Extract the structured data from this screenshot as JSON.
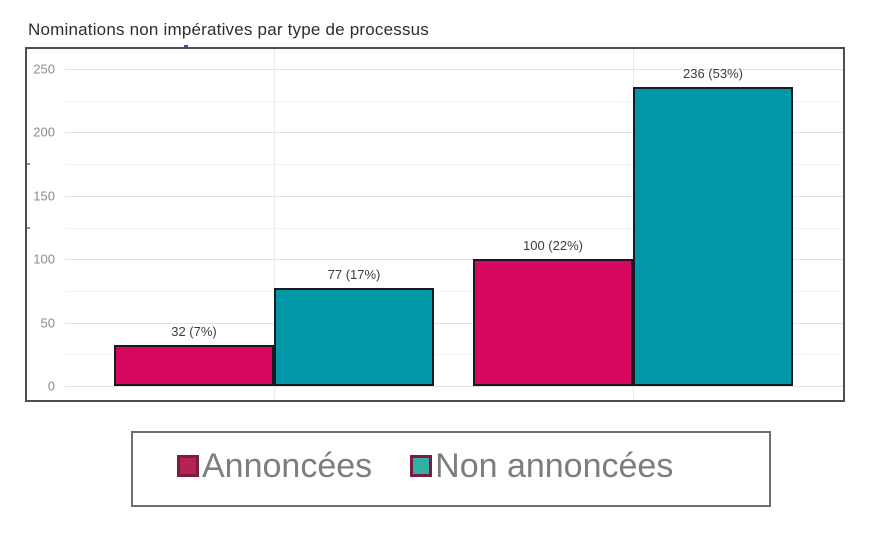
{
  "chart_data": {
    "type": "bar",
    "title": "Nominations non impératives par type de processus",
    "xlabel": "",
    "ylabel": "",
    "ylim": [
      0,
      250
    ],
    "y_ticks": [
      0,
      50,
      100,
      150,
      200,
      250
    ],
    "y_tick_labels": [
      "0",
      "50",
      "100",
      "150",
      "200",
      "250"
    ],
    "minor_grid_step": 25,
    "y_minor_tick_marks": [
      125,
      175
    ],
    "grid": "on",
    "categories": [
      "",
      ""
    ],
    "series": [
      {
        "name": "Annoncées",
        "color": "#d60860",
        "border_color": "#191924",
        "values": [
          32,
          100
        ],
        "data_labels": [
          "32 (7%)",
          "100 (22%)"
        ]
      },
      {
        "name": "Non annoncées",
        "color": "#0098a6",
        "border_color": "#191924",
        "values": [
          77,
          236
        ],
        "data_labels": [
          "77 (17%)",
          "236 (53%)"
        ]
      }
    ],
    "legend": {
      "position": "bottom",
      "items": [
        {
          "label": "Annoncées",
          "swatch_fill": "#b52451",
          "swatch_border": "#7c1c40"
        },
        {
          "label": "Non annoncées",
          "swatch_fill": "#31b0a8",
          "swatch_border": "#7c1c40"
        }
      ]
    },
    "colors": {
      "major_gridline": "#e2e2e2",
      "minor_gridline": "#f3f3f3",
      "vertical_gridline": "#eaeaea",
      "plot_border": "#4f4f4f",
      "legend_border": "#6f6f6f",
      "axis_label_text": "#8c8c8c",
      "data_label_text": "#3d3d3d",
      "legend_text": "#7d7d7d",
      "title_text": "#2e2e2e"
    }
  }
}
